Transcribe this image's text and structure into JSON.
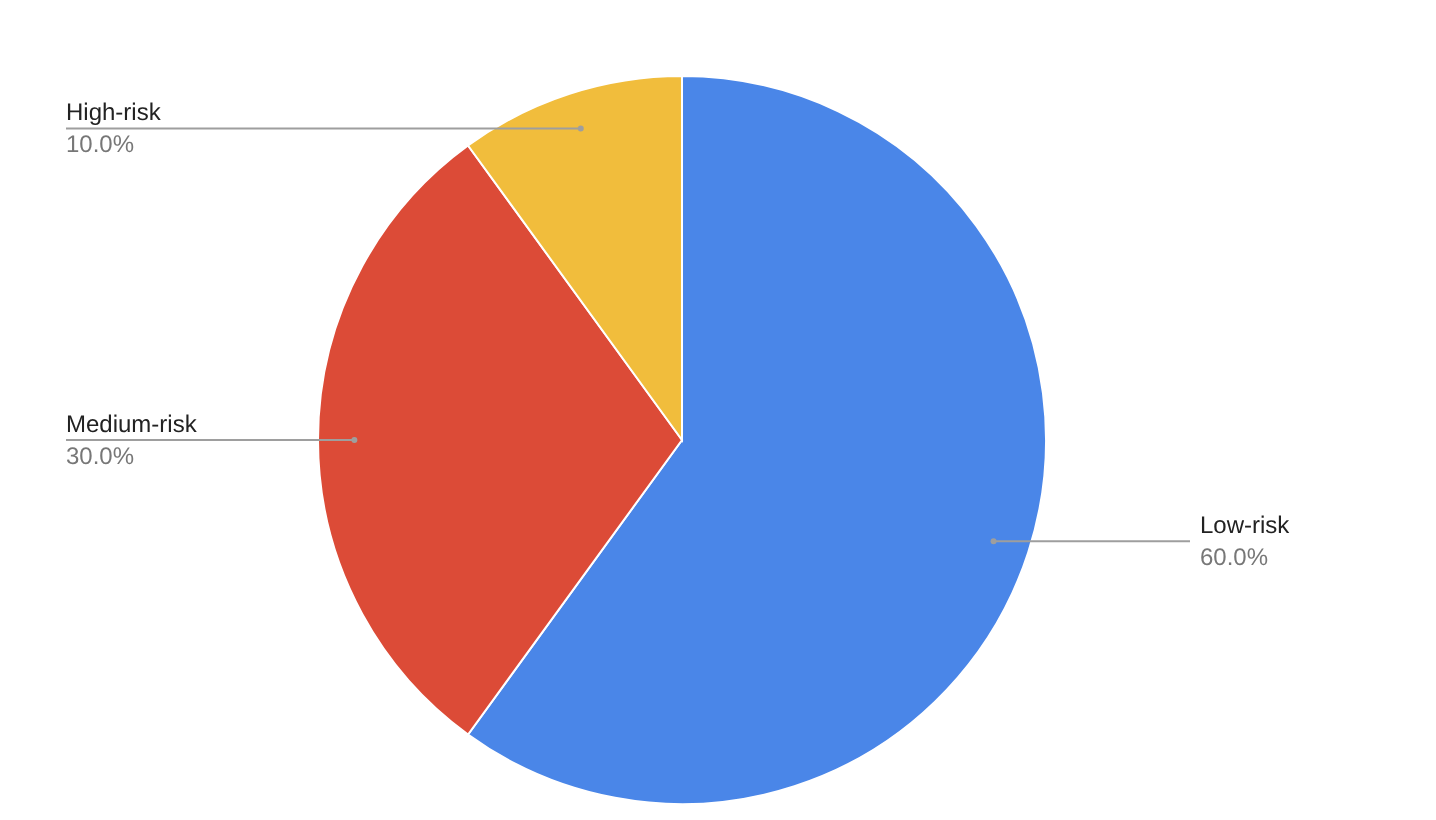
{
  "chart_data": {
    "type": "pie",
    "categories": [
      "Low-risk",
      "Medium-risk",
      "High-risk"
    ],
    "values": [
      60,
      30,
      10
    ],
    "colors": [
      "#4a86e8",
      "#dc4b37",
      "#f1bd3c"
    ],
    "value_labels": [
      "60.0%",
      "30.0%",
      "10.0%"
    ]
  }
}
